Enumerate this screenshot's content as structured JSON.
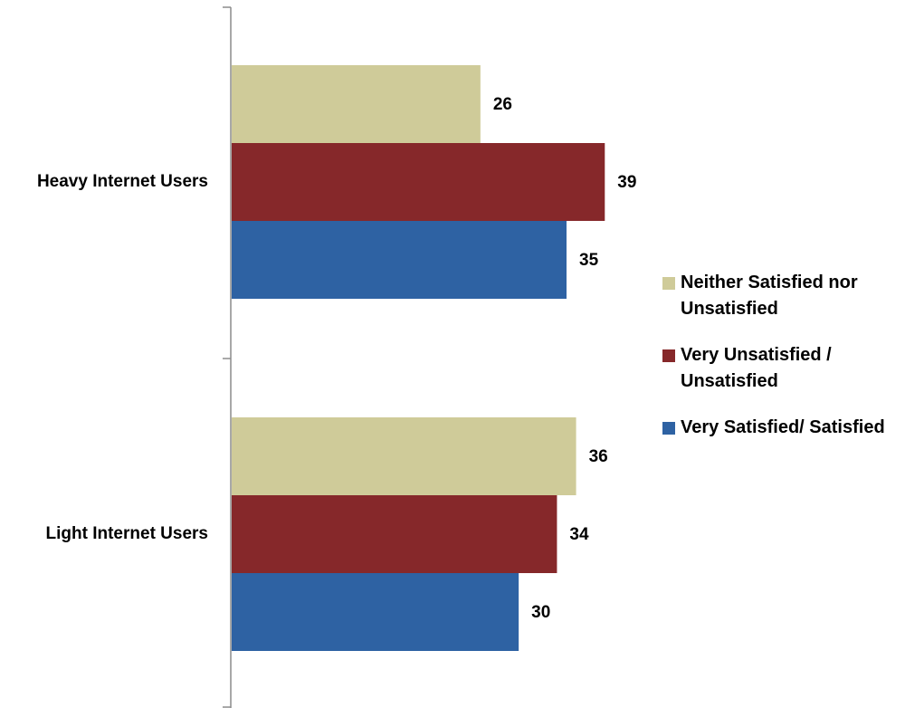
{
  "chart_data": {
    "type": "bar",
    "orientation": "horizontal",
    "categories": [
      "Heavy Internet Users",
      "Light Internet Users"
    ],
    "series": [
      {
        "name": "Neither Satisfied nor Unsatisfied",
        "color": "#cfcb99",
        "values": [
          26,
          36
        ]
      },
      {
        "name": "Very Unsatisfied / Unsatisfied",
        "color": "#86282a",
        "values": [
          39,
          34
        ]
      },
      {
        "name": "Very Satisfied/ Satisfied",
        "color": "#2e62a3",
        "values": [
          35,
          30
        ]
      }
    ],
    "xlim": [
      0,
      42
    ],
    "grid": false,
    "legend_position": "right",
    "title": "",
    "xlabel": "",
    "ylabel": ""
  },
  "legend": {
    "items": [
      {
        "label": "Neither Satisfied nor Unsatisfied",
        "color": "#cfcb99"
      },
      {
        "label": "Very Unsatisfied / Unsatisfied",
        "color": "#86282a"
      },
      {
        "label": "Very Satisfied/ Satisfied",
        "color": "#2e62a3"
      }
    ]
  }
}
